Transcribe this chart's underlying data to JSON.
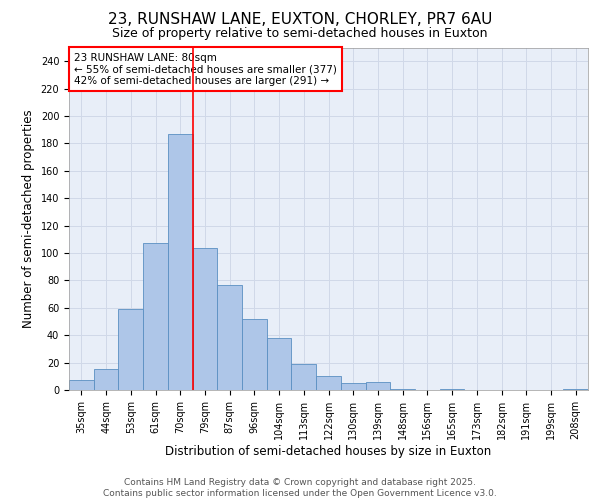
{
  "title_line1": "23, RUNSHAW LANE, EUXTON, CHORLEY, PR7 6AU",
  "title_line2": "Size of property relative to semi-detached houses in Euxton",
  "xlabel": "Distribution of semi-detached houses by size in Euxton",
  "ylabel": "Number of semi-detached properties",
  "categories": [
    "35sqm",
    "44sqm",
    "53sqm",
    "61sqm",
    "70sqm",
    "79sqm",
    "87sqm",
    "96sqm",
    "104sqm",
    "113sqm",
    "122sqm",
    "130sqm",
    "139sqm",
    "148sqm",
    "156sqm",
    "165sqm",
    "173sqm",
    "182sqm",
    "191sqm",
    "199sqm",
    "208sqm"
  ],
  "values": [
    7,
    15,
    59,
    107,
    187,
    104,
    77,
    52,
    38,
    19,
    10,
    5,
    6,
    1,
    0,
    1,
    0,
    0,
    0,
    0,
    1
  ],
  "bar_color": "#aec6e8",
  "bar_edgecolor": "#5a8fc2",
  "vline_x": 4.5,
  "vline_color": "red",
  "annotation_title": "23 RUNSHAW LANE: 80sqm",
  "annotation_line2": "← 55% of semi-detached houses are smaller (377)",
  "annotation_line3": "42% of semi-detached houses are larger (291) →",
  "annotation_box_color": "red",
  "ylim": [
    0,
    250
  ],
  "yticks": [
    0,
    20,
    40,
    60,
    80,
    100,
    120,
    140,
    160,
    180,
    200,
    220,
    240
  ],
  "grid_color": "#d0d8e8",
  "background_color": "#e8eef8",
  "footer_line1": "Contains HM Land Registry data © Crown copyright and database right 2025.",
  "footer_line2": "Contains public sector information licensed under the Open Government Licence v3.0.",
  "title_fontsize": 11,
  "subtitle_fontsize": 9,
  "axis_label_fontsize": 8.5,
  "tick_fontsize": 7,
  "annotation_fontsize": 7.5,
  "footer_fontsize": 6.5
}
